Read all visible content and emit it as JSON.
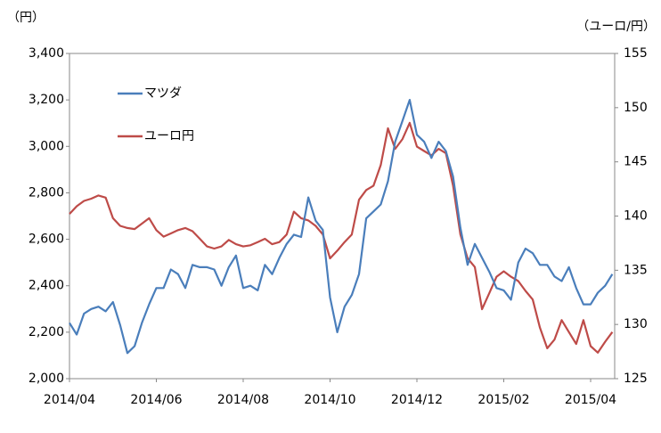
{
  "chart_data": {
    "type": "line",
    "y_label": "（円）",
    "y2_label": "（ユーロ/円）",
    "categories": [
      "2014/04",
      null,
      null,
      null,
      null,
      null,
      null,
      null,
      null,
      null,
      null,
      null,
      "2014/06",
      null,
      null,
      null,
      null,
      null,
      null,
      null,
      null,
      null,
      null,
      null,
      "2014/08",
      null,
      null,
      null,
      null,
      null,
      null,
      null,
      null,
      null,
      null,
      null,
      "2014/10",
      null,
      null,
      null,
      null,
      null,
      null,
      null,
      null,
      null,
      null,
      null,
      "2014/12",
      null,
      null,
      null,
      null,
      null,
      null,
      null,
      null,
      null,
      null,
      null,
      "2015/02",
      null,
      null,
      null,
      null,
      null,
      null,
      null,
      null,
      null,
      null,
      null,
      "2015/04",
      null,
      null,
      null
    ],
    "series": [
      {
        "name": "マツダ",
        "color": "#4a7ebb",
        "axis": "y",
        "values": [
          2240,
          2190,
          2280,
          2300,
          2310,
          2290,
          2330,
          2230,
          2110,
          2140,
          2240,
          2320,
          2390,
          2390,
          2470,
          2450,
          2390,
          2490,
          2480,
          2480,
          2470,
          2400,
          2480,
          2530,
          2390,
          2400,
          2380,
          2490,
          2450,
          2520,
          2580,
          2620,
          2610,
          2780,
          2680,
          2640,
          2350,
          2200,
          2310,
          2360,
          2450,
          2690,
          2720,
          2750,
          2850,
          3020,
          3110,
          3200,
          3050,
          3020,
          2950,
          3020,
          2980,
          2870,
          2650,
          2490,
          2580,
          2520,
          2460,
          2390,
          2380,
          2340,
          2500,
          2560,
          2540,
          2490,
          2490,
          2440,
          2420,
          2480,
          2390,
          2320,
          2320,
          2370,
          2400,
          2450
        ]
      },
      {
        "name": "ユーロ円",
        "color": "#be4b48",
        "axis": "y2",
        "values": [
          140.2,
          140.9,
          141.4,
          141.6,
          141.9,
          141.7,
          139.8,
          139.1,
          138.9,
          138.8,
          139.3,
          139.8,
          138.7,
          138.1,
          138.4,
          138.7,
          138.9,
          138.6,
          137.9,
          137.2,
          137.0,
          137.2,
          137.8,
          137.4,
          137.2,
          137.3,
          137.6,
          137.9,
          137.4,
          137.6,
          138.3,
          140.4,
          139.8,
          139.6,
          139.1,
          138.3,
          136.1,
          136.8,
          137.6,
          138.3,
          141.5,
          142.4,
          142.8,
          144.7,
          148.1,
          146.2,
          147.1,
          148.6,
          146.4,
          146.0,
          145.6,
          146.2,
          145.8,
          142.8,
          138.3,
          136.1,
          135.3,
          131.4,
          132.9,
          134.4,
          134.9,
          134.4,
          134.0,
          133.1,
          132.3,
          129.7,
          127.8,
          128.6,
          130.4,
          129.3,
          128.2,
          130.4,
          128.0,
          127.4,
          128.4,
          129.3
        ]
      }
    ],
    "ylim": [
      2000,
      3400
    ],
    "yticks": [
      {
        "value": 2000,
        "label": "2,000"
      },
      {
        "value": 2200,
        "label": "2,200"
      },
      {
        "value": 2400,
        "label": "2,400"
      },
      {
        "value": 2600,
        "label": "2,600"
      },
      {
        "value": 2800,
        "label": "2,800"
      },
      {
        "value": 3000,
        "label": "3,000"
      },
      {
        "value": 3200,
        "label": "3,200"
      },
      {
        "value": 3400,
        "label": "3,400"
      }
    ],
    "y2lim": [
      125,
      155
    ],
    "y2ticks": [
      125,
      130,
      135,
      140,
      145,
      150,
      155
    ],
    "grid": false,
    "legend": "upper-left"
  }
}
